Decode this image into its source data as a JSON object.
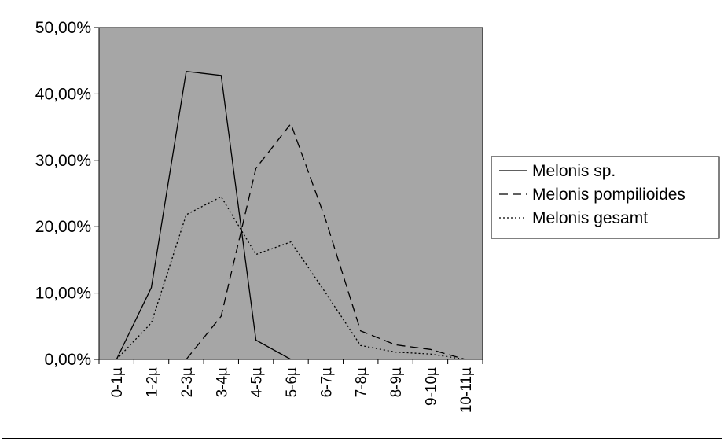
{
  "chart_data": {
    "type": "line",
    "categories": [
      "0-1µ",
      "1-2µ",
      "2-3µ",
      "3-4µ",
      "4-5µ",
      "5-6µ",
      "6-7µ",
      "7-8µ",
      "8-9µ",
      "9-10µ",
      "10-11µ"
    ],
    "y_ticks": [
      "0,00%",
      "10,00%",
      "20,00%",
      "30,00%",
      "40,00%",
      "50,00%"
    ],
    "ylim": [
      0,
      50
    ],
    "y_unit": "percent",
    "grid": false,
    "plot_background": "#a6a6a6",
    "legend_position": "right",
    "series": [
      {
        "name": "Melonis sp.",
        "style": "solid",
        "color": "#000000",
        "values": [
          0,
          10.8,
          43.4,
          42.8,
          2.9,
          0,
          null,
          null,
          null,
          null,
          null
        ]
      },
      {
        "name": "Melonis pompilioides",
        "style": "dashed",
        "color": "#000000",
        "values": [
          null,
          null,
          0,
          6.5,
          28.8,
          35.5,
          21.0,
          4.3,
          2.2,
          1.5,
          0
        ]
      },
      {
        "name": "Melonis gesamt",
        "style": "dotted",
        "color": "#000000",
        "values": [
          0,
          5.5,
          21.8,
          24.5,
          15.8,
          17.7,
          10.0,
          2.1,
          1.1,
          0.8,
          0
        ]
      }
    ]
  }
}
